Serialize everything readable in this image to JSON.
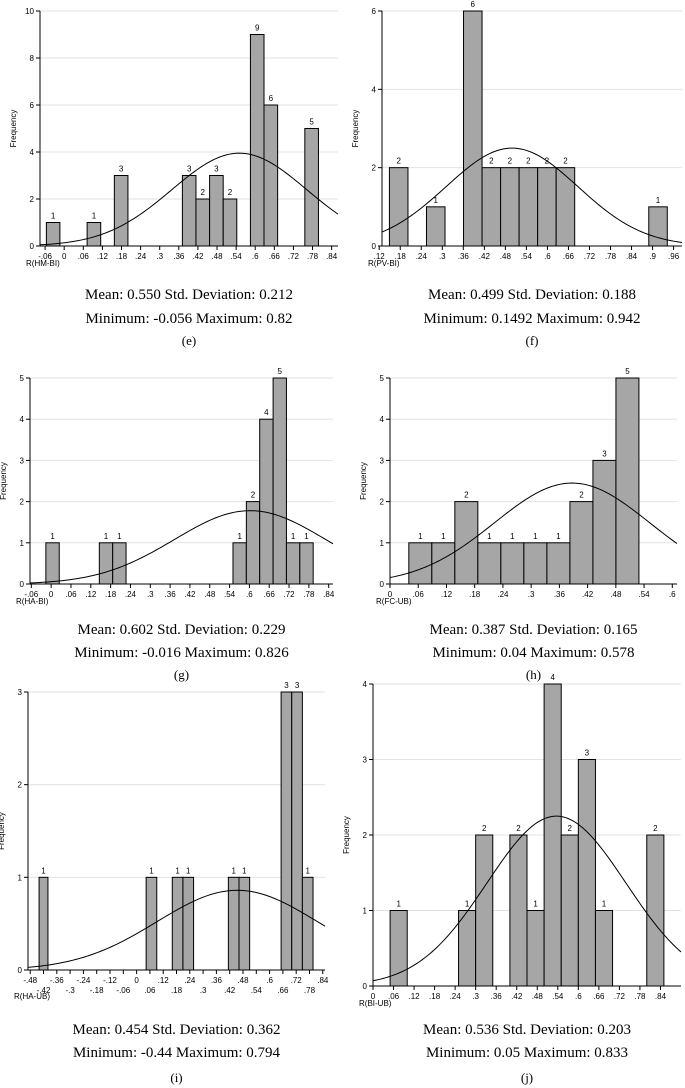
{
  "chart_data": [
    {
      "type": "bar",
      "panel_label": "(e)",
      "xlabel": "R(HM-BI)",
      "ylabel": "Frequency",
      "xlim": [
        -0.076,
        0.86
      ],
      "ylim": [
        0,
        10
      ],
      "yticks": [
        "0",
        "2",
        "4",
        "6",
        "8",
        "10"
      ],
      "ytick_values": [
        0,
        2,
        4,
        6,
        8,
        10
      ],
      "xtick_rows": [
        [
          {
            "v": -0.06,
            "t": "-.06"
          },
          {
            "v": 0,
            "t": "0"
          },
          {
            "v": 0.06,
            "t": ".06"
          },
          {
            "v": 0.12,
            "t": ".12"
          },
          {
            "v": 0.18,
            "t": ".18"
          },
          {
            "v": 0.24,
            "t": ".24"
          },
          {
            "v": 0.3,
            "t": ".3"
          },
          {
            "v": 0.36,
            "t": ".36"
          },
          {
            "v": 0.42,
            "t": ".42"
          },
          {
            "v": 0.48,
            "t": ".48"
          },
          {
            "v": 0.54,
            "t": ".54"
          },
          {
            "v": 0.6,
            "t": ".6"
          },
          {
            "v": 0.66,
            "t": ".66"
          },
          {
            "v": 0.72,
            "t": ".72"
          },
          {
            "v": 0.78,
            "t": ".78"
          },
          {
            "v": 0.84,
            "t": ".84"
          }
        ]
      ],
      "bins": [
        {
          "start": -0.056,
          "end": -0.0135,
          "count": 1,
          "label": "1"
        },
        {
          "start": 0.072,
          "end": 0.1147,
          "count": 1,
          "label": "1"
        },
        {
          "start": 0.1575,
          "end": 0.2002,
          "count": 3,
          "label": "3"
        },
        {
          "start": 0.3712,
          "end": 0.4139,
          "count": 3,
          "label": "3"
        },
        {
          "start": 0.4139,
          "end": 0.4567,
          "count": 2,
          "label": "2"
        },
        {
          "start": 0.4567,
          "end": 0.4994,
          "count": 3,
          "label": "3"
        },
        {
          "start": 0.4994,
          "end": 0.5421,
          "count": 2,
          "label": "2"
        },
        {
          "start": 0.5849,
          "end": 0.6276,
          "count": 9,
          "label": "9"
        },
        {
          "start": 0.6276,
          "end": 0.6704,
          "count": 6,
          "label": "6"
        },
        {
          "start": 0.7558,
          "end": 0.7986,
          "count": 5,
          "label": "5"
        }
      ],
      "normal": {
        "mean": 0.55,
        "sd": 0.212,
        "peak": 3.95
      },
      "stats_line1": "Mean: 0.550   Std. Deviation: 0.212",
      "stats_line2": "Minimum: -0.056   Maximum: 0.82"
    },
    {
      "type": "bar",
      "panel_label": "(f)",
      "xlabel": "R(PV-BI)",
      "ylabel": "Frequency",
      "xlim": [
        0.128,
        0.984
      ],
      "ylim": [
        0,
        6
      ],
      "yticks": [
        "0",
        "2",
        "4",
        "6"
      ],
      "ytick_values": [
        0,
        2,
        4,
        6
      ],
      "xtick_rows": [
        [
          {
            "v": 0.12,
            "t": ".12"
          },
          {
            "v": 0.18,
            "t": ".18"
          },
          {
            "v": 0.24,
            "t": ".24"
          },
          {
            "v": 0.3,
            "t": ".3"
          },
          {
            "v": 0.36,
            "t": ".36"
          },
          {
            "v": 0.42,
            "t": ".42"
          },
          {
            "v": 0.48,
            "t": ".48"
          },
          {
            "v": 0.54,
            "t": ".54"
          },
          {
            "v": 0.6,
            "t": ".6"
          },
          {
            "v": 0.66,
            "t": ".66"
          },
          {
            "v": 0.72,
            "t": ".72"
          },
          {
            "v": 0.78,
            "t": ".78"
          },
          {
            "v": 0.84,
            "t": ".84"
          },
          {
            "v": 0.9,
            "t": ".9"
          },
          {
            "v": 0.96,
            "t": ".96"
          }
        ]
      ],
      "bins": [
        {
          "start": 0.1492,
          "end": 0.2021,
          "count": 2,
          "label": "2"
        },
        {
          "start": 0.2549,
          "end": 0.3078,
          "count": 1,
          "label": "1"
        },
        {
          "start": 0.3606,
          "end": 0.4135,
          "count": 6,
          "label": "6"
        },
        {
          "start": 0.4135,
          "end": 0.4664,
          "count": 2,
          "label": "2"
        },
        {
          "start": 0.4664,
          "end": 0.5192,
          "count": 2,
          "label": "2"
        },
        {
          "start": 0.5192,
          "end": 0.5721,
          "count": 2,
          "label": "2"
        },
        {
          "start": 0.5721,
          "end": 0.6249,
          "count": 2,
          "label": "2"
        },
        {
          "start": 0.6249,
          "end": 0.6778,
          "count": 2,
          "label": "2"
        },
        {
          "start": 0.8892,
          "end": 0.942,
          "count": 1,
          "label": "1"
        }
      ],
      "normal": {
        "mean": 0.499,
        "sd": 0.188,
        "peak": 2.5
      },
      "stats_line1": "Mean: 0.499   Std. Deviation: 0.188",
      "stats_line2": "Minimum: 0.1492   Maximum: 0.942"
    },
    {
      "type": "bar",
      "panel_label": "(g)",
      "xlabel": "R(HA-BI)",
      "ylabel": "Frequency",
      "xlim": [
        -0.064,
        0.853
      ],
      "ylim": [
        0,
        5
      ],
      "yticks": [
        "0",
        "1",
        "2",
        "3",
        "4",
        "5"
      ],
      "ytick_values": [
        0,
        1,
        2,
        3,
        4,
        5
      ],
      "xtick_rows": [
        [
          {
            "v": -0.06,
            "t": "-.06"
          },
          {
            "v": 0,
            "t": "0"
          },
          {
            "v": 0.06,
            "t": ".06"
          },
          {
            "v": 0.12,
            "t": ".12"
          },
          {
            "v": 0.18,
            "t": ".18"
          },
          {
            "v": 0.24,
            "t": ".24"
          },
          {
            "v": 0.3,
            "t": ".3"
          },
          {
            "v": 0.36,
            "t": ".36"
          },
          {
            "v": 0.42,
            "t": ".42"
          },
          {
            "v": 0.48,
            "t": ".48"
          },
          {
            "v": 0.54,
            "t": ".54"
          },
          {
            "v": 0.6,
            "t": ".6"
          },
          {
            "v": 0.66,
            "t": ".66"
          },
          {
            "v": 0.72,
            "t": ".72"
          },
          {
            "v": 0.78,
            "t": ".78"
          },
          {
            "v": 0.84,
            "t": ".84"
          }
        ]
      ],
      "bins": [
        {
          "start": -0.016,
          "end": 0.0245,
          "count": 1,
          "label": "1"
        },
        {
          "start": 0.1458,
          "end": 0.1863,
          "count": 1,
          "label": "1"
        },
        {
          "start": 0.1863,
          "end": 0.2267,
          "count": 1,
          "label": "1"
        },
        {
          "start": 0.5503,
          "end": 0.5908,
          "count": 1,
          "label": "1"
        },
        {
          "start": 0.5908,
          "end": 0.6312,
          "count": 2,
          "label": "2"
        },
        {
          "start": 0.6312,
          "end": 0.6717,
          "count": 4,
          "label": "4"
        },
        {
          "start": 0.6717,
          "end": 0.7121,
          "count": 5,
          "label": "5"
        },
        {
          "start": 0.7121,
          "end": 0.7526,
          "count": 1,
          "label": "1"
        },
        {
          "start": 0.7526,
          "end": 0.793,
          "count": 1,
          "label": "1"
        }
      ],
      "normal": {
        "mean": 0.602,
        "sd": 0.229,
        "peak": 1.78
      },
      "stats_line1": "Mean: 0.602   Std. Deviation: 0.229",
      "stats_line2": "Minimum: -0.016  Maximum: 0.826"
    },
    {
      "type": "bar",
      "panel_label": "(h)",
      "xlabel": "R(FC-UB)",
      "ylabel": "Frequency",
      "xlim": [
        0.0,
        0.61
      ],
      "ylim": [
        0,
        5
      ],
      "yticks": [
        "0",
        "1",
        "2",
        "3",
        "4",
        "5"
      ],
      "ytick_values": [
        0,
        1,
        2,
        3,
        4,
        5
      ],
      "xtick_rows": [
        [
          {
            "v": 0,
            "t": "0"
          },
          {
            "v": 0.06,
            "t": ".06"
          },
          {
            "v": 0.12,
            "t": ".12"
          },
          {
            "v": 0.18,
            "t": ".18"
          },
          {
            "v": 0.24,
            "t": ".24"
          },
          {
            "v": 0.3,
            "t": ".3"
          },
          {
            "v": 0.36,
            "t": ".36"
          },
          {
            "v": 0.42,
            "t": ".42"
          },
          {
            "v": 0.48,
            "t": ".48"
          },
          {
            "v": 0.54,
            "t": ".54"
          },
          {
            "v": 0.6,
            "t": ".6"
          }
        ]
      ],
      "bins": [
        {
          "start": 0.04,
          "end": 0.0889,
          "count": 1,
          "label": "1"
        },
        {
          "start": 0.0889,
          "end": 0.1378,
          "count": 1,
          "label": "1"
        },
        {
          "start": 0.1378,
          "end": 0.1867,
          "count": 2,
          "label": "2"
        },
        {
          "start": 0.1867,
          "end": 0.2356,
          "count": 1,
          "label": "1"
        },
        {
          "start": 0.2356,
          "end": 0.2845,
          "count": 1,
          "label": "1"
        },
        {
          "start": 0.2845,
          "end": 0.3335,
          "count": 1,
          "label": "1"
        },
        {
          "start": 0.3335,
          "end": 0.3824,
          "count": 1,
          "label": "1"
        },
        {
          "start": 0.3824,
          "end": 0.4313,
          "count": 2,
          "label": "2"
        },
        {
          "start": 0.4313,
          "end": 0.4802,
          "count": 3,
          "label": "3"
        },
        {
          "start": 0.4802,
          "end": 0.5291,
          "count": 5,
          "label": "5"
        }
      ],
      "normal": {
        "mean": 0.387,
        "sd": 0.165,
        "peak": 2.45
      },
      "stats_line1": "Mean: 0.387   Std. Deviation: 0.165",
      "stats_line2": "Minimum: 0.04   Maximum: 0.578"
    },
    {
      "type": "bar",
      "panel_label": "(i)",
      "xlabel": "R(HA-UB)",
      "ylabel": "Frequency",
      "xlim": [
        -0.49,
        0.85
      ],
      "ylim": [
        0,
        3
      ],
      "yticks": [
        "0",
        "1",
        "2",
        "3"
      ],
      "ytick_values": [
        0,
        1,
        2,
        3
      ],
      "xtick_rows": [
        [
          {
            "v": -0.48,
            "t": "-.48"
          },
          {
            "v": -0.36,
            "t": "-.36"
          },
          {
            "v": -0.24,
            "t": "-.24"
          },
          {
            "v": -0.12,
            "t": "-.12"
          },
          {
            "v": 0,
            "t": "0"
          },
          {
            "v": 0.12,
            "t": ".12"
          },
          {
            "v": 0.24,
            "t": ".24"
          },
          {
            "v": 0.36,
            "t": ".36"
          },
          {
            "v": 0.48,
            "t": ".48"
          },
          {
            "v": 0.6,
            "t": ".6"
          },
          {
            "v": 0.72,
            "t": ".72"
          },
          {
            "v": 0.84,
            "t": ".84"
          }
        ],
        [
          {
            "v": -0.42,
            "t": "-.42"
          },
          {
            "v": -0.3,
            "t": "-.3"
          },
          {
            "v": -0.18,
            "t": "-.18"
          },
          {
            "v": -0.06,
            "t": "-.06"
          },
          {
            "v": 0.06,
            "t": ".06"
          },
          {
            "v": 0.18,
            "t": ".18"
          },
          {
            "v": 0.3,
            "t": ".3"
          },
          {
            "v": 0.42,
            "t": ".42"
          },
          {
            "v": 0.54,
            "t": ".54"
          },
          {
            "v": 0.66,
            "t": ".66"
          },
          {
            "v": 0.78,
            "t": ".78"
          }
        ]
      ],
      "bins": [
        {
          "start": -0.44,
          "end": -0.4,
          "count": 1,
          "label": "1"
        },
        {
          "start": 0.043,
          "end": 0.091,
          "count": 1,
          "label": "1"
        },
        {
          "start": 0.161,
          "end": 0.209,
          "count": 1,
          "label": "1"
        },
        {
          "start": 0.209,
          "end": 0.257,
          "count": 1,
          "label": "1"
        },
        {
          "start": 0.414,
          "end": 0.462,
          "count": 1,
          "label": "1"
        },
        {
          "start": 0.462,
          "end": 0.51,
          "count": 1,
          "label": "1"
        },
        {
          "start": 0.652,
          "end": 0.7,
          "count": 3,
          "label": "3"
        },
        {
          "start": 0.7,
          "end": 0.748,
          "count": 3,
          "label": "3"
        },
        {
          "start": 0.748,
          "end": 0.796,
          "count": 1,
          "label": "1"
        }
      ],
      "normal": {
        "mean": 0.454,
        "sd": 0.362,
        "peak": 0.86
      },
      "stats_line1": "Mean: 0.454   Std. Deviation: 0.362",
      "stats_line2": "Minimum: -0.44  Maximum: 0.794"
    },
    {
      "type": "bar",
      "panel_label": "(j)",
      "xlabel": "R(BI-UB)",
      "ylabel": "Frequency",
      "xlim": [
        0.0,
        0.9
      ],
      "ylim": [
        0,
        4
      ],
      "yticks": [
        "0",
        "1",
        "2",
        "3",
        "4"
      ],
      "ytick_values": [
        0,
        1,
        2,
        3,
        4
      ],
      "xtick_rows": [
        [
          {
            "v": 0,
            "t": "0"
          },
          {
            "v": 0.06,
            "t": ".06"
          },
          {
            "v": 0.12,
            "t": ".12"
          },
          {
            "v": 0.18,
            "t": ".18"
          },
          {
            "v": 0.24,
            "t": ".24"
          },
          {
            "v": 0.3,
            "t": ".3"
          },
          {
            "v": 0.36,
            "t": ".36"
          },
          {
            "v": 0.42,
            "t": ".42"
          },
          {
            "v": 0.48,
            "t": ".48"
          },
          {
            "v": 0.54,
            "t": ".54"
          },
          {
            "v": 0.6,
            "t": ".6"
          },
          {
            "v": 0.66,
            "t": ".66"
          },
          {
            "v": 0.72,
            "t": ".72"
          },
          {
            "v": 0.78,
            "t": ".78"
          },
          {
            "v": 0.84,
            "t": ".84"
          }
        ]
      ],
      "bins": [
        {
          "start": 0.05,
          "end": 0.1,
          "count": 1,
          "label": "1"
        },
        {
          "start": 0.25,
          "end": 0.3,
          "count": 1,
          "label": "1"
        },
        {
          "start": 0.3,
          "end": 0.35,
          "count": 2,
          "label": "2"
        },
        {
          "start": 0.4,
          "end": 0.45,
          "count": 2,
          "label": "2"
        },
        {
          "start": 0.45,
          "end": 0.5,
          "count": 1,
          "label": "1"
        },
        {
          "start": 0.5,
          "end": 0.55,
          "count": 4,
          "label": "4"
        },
        {
          "start": 0.55,
          "end": 0.6,
          "count": 2,
          "label": "2"
        },
        {
          "start": 0.6,
          "end": 0.65,
          "count": 3,
          "label": "3"
        },
        {
          "start": 0.65,
          "end": 0.7,
          "count": 1,
          "label": "1"
        },
        {
          "start": 0.8,
          "end": 0.85,
          "count": 2,
          "label": "2"
        }
      ],
      "normal": {
        "mean": 0.536,
        "sd": 0.203,
        "peak": 2.25
      },
      "stats_line1": "Mean: 0.536   Std. Deviation: 0.203",
      "stats_line2": "Minimum: 0.05   Maximum: 0.833"
    }
  ]
}
